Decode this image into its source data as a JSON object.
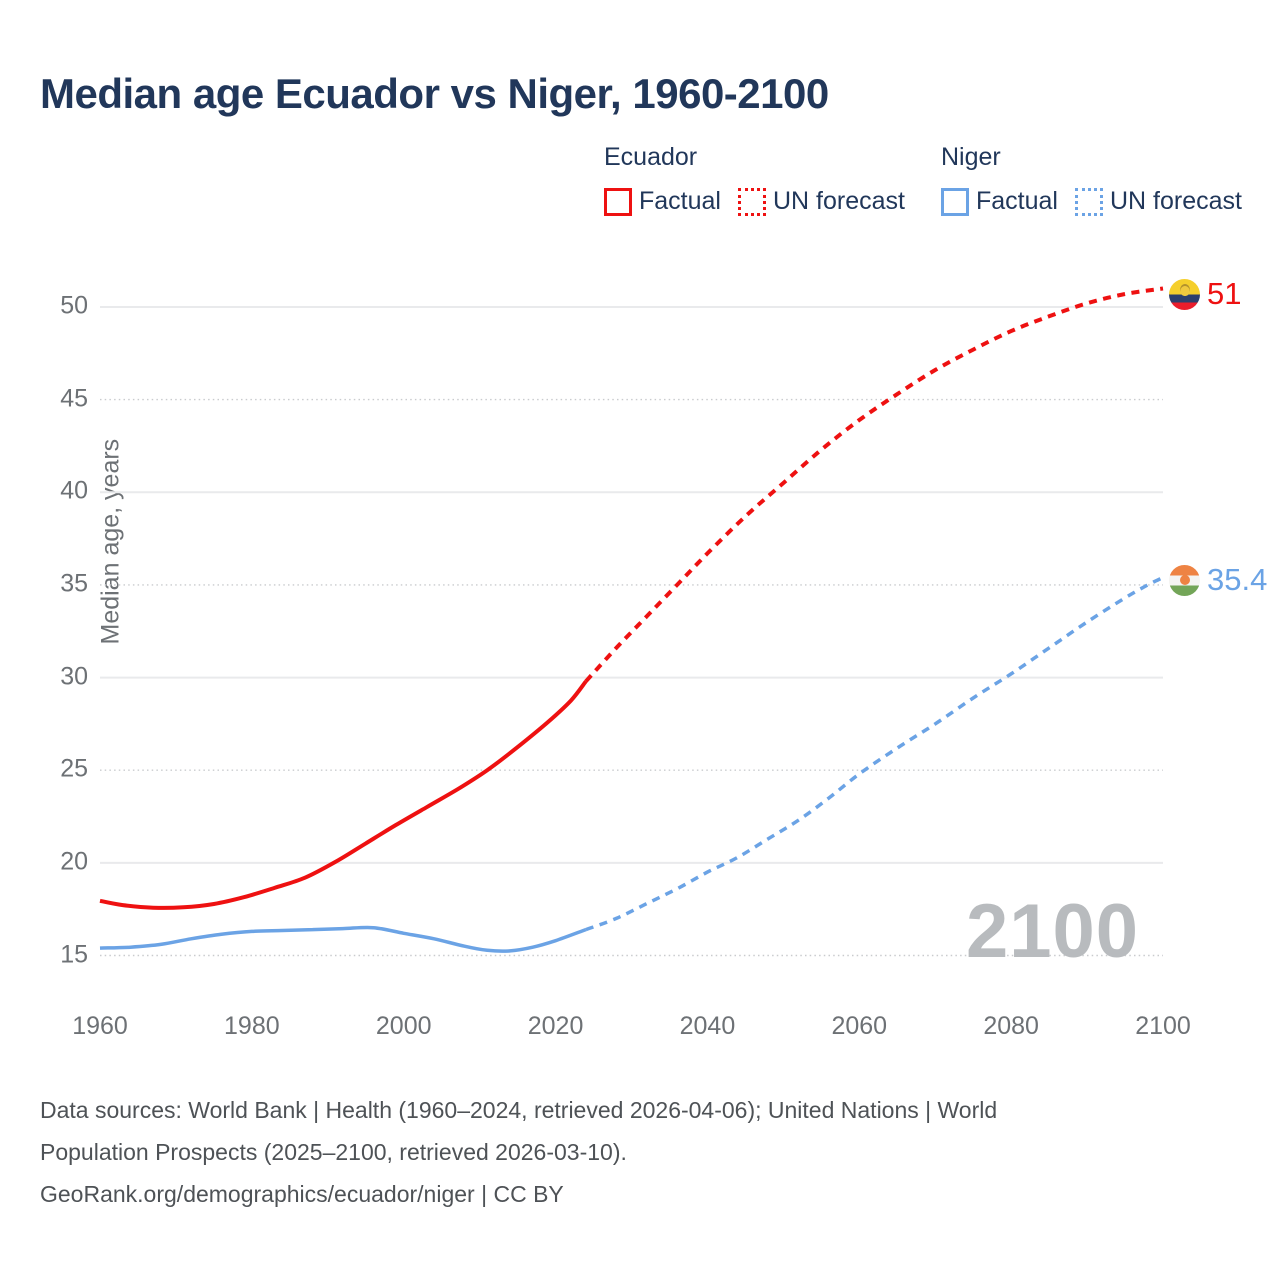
{
  "title": "Median age Ecuador vs Niger, 1960-2100",
  "watermark": "2100",
  "legend": {
    "groups": [
      {
        "name": "Ecuador",
        "color": "#ee1111",
        "items": [
          {
            "label": "Factual",
            "style": "solid"
          },
          {
            "label": "UN forecast",
            "style": "dotted"
          }
        ]
      },
      {
        "name": "Niger",
        "color": "#6ba3e5",
        "items": [
          {
            "label": "Factual",
            "style": "solid"
          },
          {
            "label": "UN forecast",
            "style": "dotted"
          }
        ]
      }
    ]
  },
  "end_labels": [
    {
      "series": "Ecuador",
      "value": "51",
      "flag": "ecuador-flag"
    },
    {
      "series": "Niger",
      "value": "35.4",
      "flag": "niger-flag"
    }
  ],
  "footer": {
    "lines": [
      "Data sources: World Bank | Health (1960–2024, retrieved 2026-04-06); United Nations | World",
      "Population Prospects (2025–2100, retrieved 2026-03-10).",
      "GeoRank.org/demographics/ecuador/niger | CC BY"
    ]
  },
  "colors": {
    "ecuador": "#ee1111",
    "niger": "#6ba3e5",
    "title_text": "#21375a",
    "axis_text": "#6d7175",
    "footer_text": "#4e5256",
    "watermark": "#b8bbbe",
    "grid_solid": "#e9eaec",
    "grid_dotted": "#c9cbce"
  },
  "chart_data": {
    "type": "line",
    "title": "Median age Ecuador vs Niger, 1960-2100",
    "xlabel": "",
    "ylabel": "Median age, years",
    "xlim": [
      1960,
      2100
    ],
    "ylim": [
      15,
      50
    ],
    "grid": true,
    "legend_position": "top-right",
    "x_ticks": [
      1960,
      1980,
      2000,
      2020,
      2040,
      2060,
      2080,
      2100
    ],
    "y_ticks": [
      {
        "value": 15,
        "line": "dotted"
      },
      {
        "value": 20,
        "line": "solid"
      },
      {
        "value": 25,
        "line": "dotted"
      },
      {
        "value": 30,
        "line": "solid"
      },
      {
        "value": 35,
        "line": "dotted"
      },
      {
        "value": 40,
        "line": "solid"
      },
      {
        "value": 45,
        "line": "dotted"
      },
      {
        "value": 50,
        "line": "solid"
      }
    ],
    "series": [
      {
        "name": "Ecuador factual",
        "color": "#ee1111",
        "dashed": false,
        "points": [
          [
            1960,
            17.95
          ],
          [
            1963,
            17.72
          ],
          [
            1967,
            17.58
          ],
          [
            1971,
            17.6
          ],
          [
            1975,
            17.78
          ],
          [
            1979,
            18.15
          ],
          [
            1983,
            18.65
          ],
          [
            1987,
            19.2
          ],
          [
            1991,
            20.05
          ],
          [
            1995,
            21.05
          ],
          [
            1999,
            22.05
          ],
          [
            2003,
            23.0
          ],
          [
            2007,
            23.95
          ],
          [
            2011,
            25.0
          ],
          [
            2015,
            26.25
          ],
          [
            2019,
            27.6
          ],
          [
            2022,
            28.75
          ],
          [
            2024,
            29.8
          ]
        ]
      },
      {
        "name": "Ecuador UN forecast",
        "color": "#ee1111",
        "dashed": true,
        "points": [
          [
            2024,
            29.8
          ],
          [
            2028,
            31.6
          ],
          [
            2032,
            33.3
          ],
          [
            2036,
            35.0
          ],
          [
            2040,
            36.7
          ],
          [
            2045,
            38.7
          ],
          [
            2050,
            40.5
          ],
          [
            2055,
            42.3
          ],
          [
            2060,
            43.9
          ],
          [
            2065,
            45.3
          ],
          [
            2070,
            46.6
          ],
          [
            2075,
            47.7
          ],
          [
            2080,
            48.7
          ],
          [
            2085,
            49.5
          ],
          [
            2090,
            50.2
          ],
          [
            2095,
            50.7
          ],
          [
            2100,
            51.0
          ]
        ]
      },
      {
        "name": "Niger factual",
        "color": "#6ba3e5",
        "dashed": false,
        "points": [
          [
            1960,
            15.4
          ],
          [
            1964,
            15.45
          ],
          [
            1968,
            15.6
          ],
          [
            1972,
            15.9
          ],
          [
            1976,
            16.15
          ],
          [
            1980,
            16.3
          ],
          [
            1984,
            16.35
          ],
          [
            1988,
            16.4
          ],
          [
            1992,
            16.45
          ],
          [
            1996,
            16.5
          ],
          [
            2000,
            16.2
          ],
          [
            2004,
            15.9
          ],
          [
            2008,
            15.5
          ],
          [
            2011,
            15.28
          ],
          [
            2014,
            15.25
          ],
          [
            2017,
            15.45
          ],
          [
            2020,
            15.8
          ],
          [
            2024,
            16.4
          ]
        ]
      },
      {
        "name": "Niger UN forecast",
        "color": "#6ba3e5",
        "dashed": true,
        "points": [
          [
            2024,
            16.4
          ],
          [
            2028,
            17.0
          ],
          [
            2032,
            17.8
          ],
          [
            2036,
            18.6
          ],
          [
            2040,
            19.5
          ],
          [
            2044,
            20.3
          ],
          [
            2048,
            21.3
          ],
          [
            2052,
            22.3
          ],
          [
            2056,
            23.5
          ],
          [
            2060,
            24.8
          ],
          [
            2065,
            26.2
          ],
          [
            2070,
            27.5
          ],
          [
            2075,
            28.9
          ],
          [
            2080,
            30.2
          ],
          [
            2085,
            31.6
          ],
          [
            2090,
            33.0
          ],
          [
            2095,
            34.3
          ],
          [
            2098,
            35.0
          ],
          [
            2100,
            35.4
          ]
        ]
      }
    ]
  }
}
